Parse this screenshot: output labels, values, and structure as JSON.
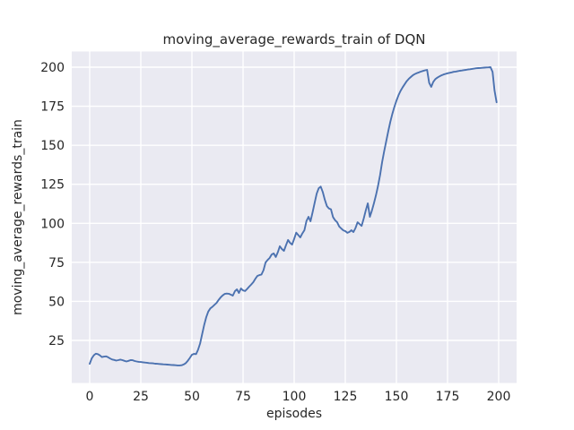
{
  "chart_data": {
    "type": "line",
    "title": "moving_average_rewards_train of DQN",
    "xlabel": "episodes",
    "ylabel": "moving_average_rewards_train",
    "x_ticks": [
      0,
      25,
      50,
      75,
      100,
      125,
      150,
      175,
      200
    ],
    "y_ticks": [
      25,
      50,
      75,
      100,
      125,
      150,
      175,
      200
    ],
    "xlim": [
      -10,
      208.8
    ],
    "ylim": [
      -2.3,
      209.8
    ],
    "grid": true,
    "legend": "none",
    "style": {
      "figure_background": "#ffffff",
      "axes_background": "#eaeaf2",
      "grid_color": "#ffffff",
      "line_color": "#4c72b0",
      "text_color": "#262626"
    },
    "series": [
      {
        "name": "moving_average_rewards_train",
        "x_start": 0,
        "x_step": 1,
        "values": [
          10.0,
          13.5,
          15.5,
          16.5,
          16.2,
          15.4,
          14.3,
          14.6,
          14.8,
          14.2,
          13.4,
          12.8,
          12.5,
          12.1,
          12.4,
          12.7,
          12.4,
          11.9,
          11.5,
          11.9,
          12.4,
          12.3,
          11.8,
          11.5,
          11.3,
          11.2,
          11.0,
          10.8,
          10.7,
          10.5,
          10.4,
          10.3,
          10.1,
          10.0,
          9.9,
          9.8,
          9.7,
          9.6,
          9.5,
          9.4,
          9.3,
          9.2,
          9.1,
          9.0,
          9.0,
          9.1,
          9.6,
          10.5,
          12.0,
          13.8,
          15.8,
          16.4,
          16.2,
          19.0,
          23.0,
          29.0,
          35.0,
          40.0,
          43.5,
          45.5,
          46.5,
          47.8,
          49.0,
          50.8,
          52.5,
          53.8,
          54.8,
          55.0,
          54.9,
          54.3,
          53.7,
          56.5,
          57.7,
          55.4,
          58.3,
          57.0,
          56.6,
          58.0,
          59.4,
          60.8,
          62.3,
          64.5,
          66.3,
          66.8,
          67.2,
          70.0,
          74.9,
          76.5,
          77.8,
          80.0,
          80.7,
          78.4,
          81.5,
          85.3,
          83.5,
          82.4,
          86.0,
          89.3,
          87.5,
          86.4,
          90.0,
          94.0,
          92.5,
          91.0,
          93.5,
          95.6,
          101.5,
          104.2,
          101.3,
          107.0,
          113.0,
          119.0,
          122.5,
          123.5,
          120.0,
          115.0,
          111.0,
          109.5,
          109.0,
          104.0,
          102.0,
          100.7,
          98.0,
          96.7,
          95.5,
          95.0,
          93.9,
          94.5,
          95.6,
          94.4,
          97.0,
          100.7,
          99.5,
          98.4,
          103.0,
          108.2,
          112.8,
          104.2,
          108.0,
          112.8,
          118.0,
          124.0,
          131.0,
          139.0,
          146.0,
          152.5,
          159.0,
          165.0,
          170.0,
          174.5,
          178.5,
          182.0,
          184.8,
          187.0,
          189.0,
          191.0,
          192.5,
          193.7,
          194.8,
          195.6,
          196.2,
          196.7,
          197.2,
          197.6,
          198.0,
          198.3,
          190.0,
          187.4,
          190.5,
          192.3,
          193.3,
          194.1,
          194.8,
          195.3,
          195.7,
          196.1,
          196.4,
          196.7,
          197.0,
          197.2,
          197.5,
          197.7,
          197.9,
          198.1,
          198.3,
          198.5,
          198.7,
          198.9,
          199.1,
          199.3,
          199.4,
          199.5,
          199.6,
          199.7,
          199.8,
          199.9,
          200.0,
          197.0,
          185.0,
          177.5
        ]
      }
    ]
  }
}
